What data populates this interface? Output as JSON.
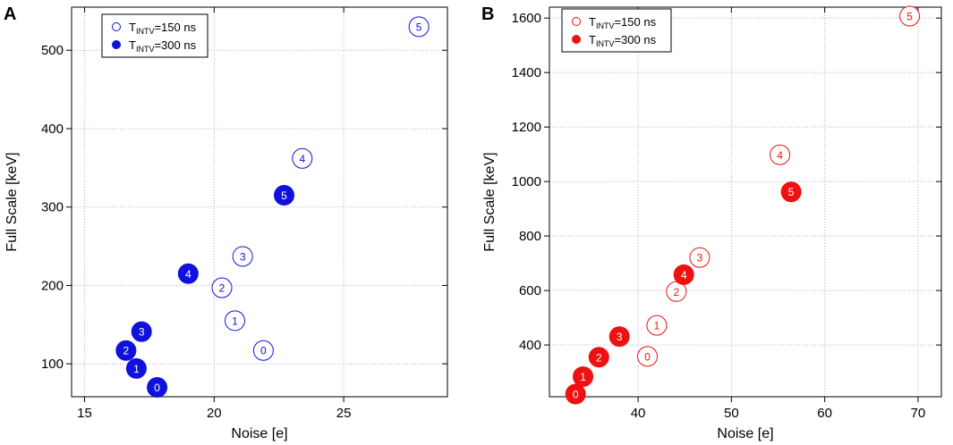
{
  "chart_data": [
    {
      "type": "scatter",
      "panel_label": "A",
      "xlabel": "Noise [e]",
      "ylabel": "Full Scale [keV]",
      "xlim": [
        14.5,
        29.0
      ],
      "ylim": [
        58,
        555
      ],
      "xticks": [
        15,
        20,
        25
      ],
      "yticks": [
        100,
        200,
        300,
        400,
        500
      ],
      "grid": true,
      "color": "#1111dd",
      "legend_position": "top-left",
      "series": [
        {
          "name": "TINTV=150 ns",
          "legend_base": "T",
          "legend_sub": "INTV",
          "legend_rest": "=150 ns",
          "marker": "open-circle",
          "labels": [
            "0",
            "1",
            "2",
            "3",
            "4",
            "5"
          ],
          "x": [
            21.9,
            20.8,
            20.3,
            21.1,
            23.4,
            27.9
          ],
          "y": [
            117,
            155,
            197,
            237,
            362,
            530
          ]
        },
        {
          "name": "TINTV=300 ns",
          "legend_base": "T",
          "legend_sub": "INTV",
          "legend_rest": "=300 ns",
          "marker": "filled-circle",
          "labels": [
            "0",
            "1",
            "2",
            "3",
            "4",
            "5"
          ],
          "x": [
            17.8,
            17.0,
            16.6,
            17.2,
            19.0,
            22.7
          ],
          "y": [
            70,
            94,
            117,
            141,
            215,
            315
          ]
        }
      ]
    },
    {
      "type": "scatter",
      "panel_label": "B",
      "xlabel": "Noise [e]",
      "ylabel": "Full Scale [keV]",
      "xlim": [
        30.5,
        72.5
      ],
      "ylim": [
        210,
        1640
      ],
      "xticks": [
        40,
        50,
        60,
        70
      ],
      "yticks": [
        400,
        600,
        800,
        1000,
        1200,
        1400,
        1600
      ],
      "grid": true,
      "color": "#ee1111",
      "legend_position": "top-left",
      "series": [
        {
          "name": "TINTV=150 ns",
          "legend_base": "T",
          "legend_sub": "INTV",
          "legend_rest": "=150 ns",
          "marker": "open-circle",
          "labels": [
            "0",
            "1",
            "2",
            "3",
            "4",
            "5"
          ],
          "x": [
            41.0,
            42.0,
            44.1,
            46.6,
            55.2,
            69.1
          ],
          "y": [
            358,
            472,
            596,
            721,
            1098,
            1607
          ]
        },
        {
          "name": "TINTV=300 ns",
          "legend_base": "T",
          "legend_sub": "INTV",
          "legend_rest": "=300 ns",
          "marker": "filled-circle",
          "labels": [
            "0",
            "1",
            "2",
            "3",
            "4",
            "5"
          ],
          "x": [
            33.3,
            34.1,
            35.8,
            38.0,
            44.9,
            56.4
          ],
          "y": [
            220,
            284,
            355,
            431,
            658,
            962
          ]
        }
      ]
    }
  ]
}
